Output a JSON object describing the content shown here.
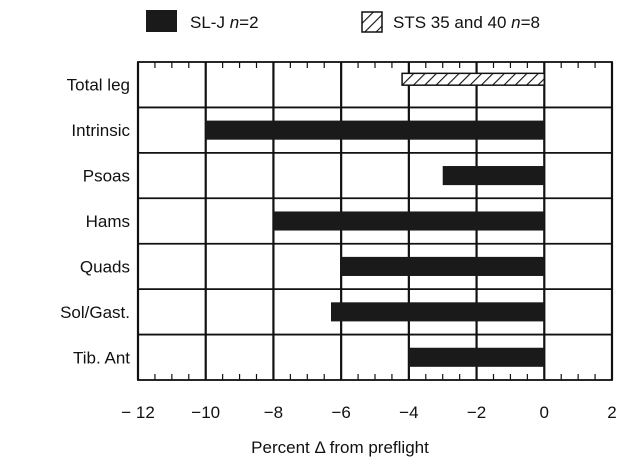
{
  "colors": {
    "bar_solid": "#1a1a1a",
    "frame": "#111111",
    "background": "#ffffff"
  },
  "chart_data": {
    "type": "bar",
    "orientation": "horizontal",
    "xlabel": "Percent Δ from preflight",
    "ylabel": "",
    "xlim": [
      -12,
      2
    ],
    "xticks": [
      -12,
      -10,
      -8,
      -6,
      -4,
      -2,
      0,
      2
    ],
    "xtick_labels": [
      "− 12",
      "−10",
      "−8",
      "−6",
      "−4",
      "−2",
      "0",
      "2"
    ],
    "categories": [
      "Total leg",
      "Intrinsic",
      "Psoas",
      "Hams",
      "Quads",
      "Sol/Gast.",
      "Tib. Ant"
    ],
    "legend_position": "top",
    "series": [
      {
        "label_prefix": "SL-J ",
        "label_n": "n",
        "label_suffix": "=2",
        "pattern": "solid",
        "values": [
          null,
          -10,
          -3,
          -8,
          -6,
          -6.3,
          -4
        ]
      },
      {
        "label_prefix": "STS 35 and 40 ",
        "label_n": "n",
        "label_suffix": "=8",
        "pattern": "hatched",
        "values": [
          -4.2,
          null,
          null,
          null,
          null,
          null,
          null
        ]
      }
    ]
  }
}
